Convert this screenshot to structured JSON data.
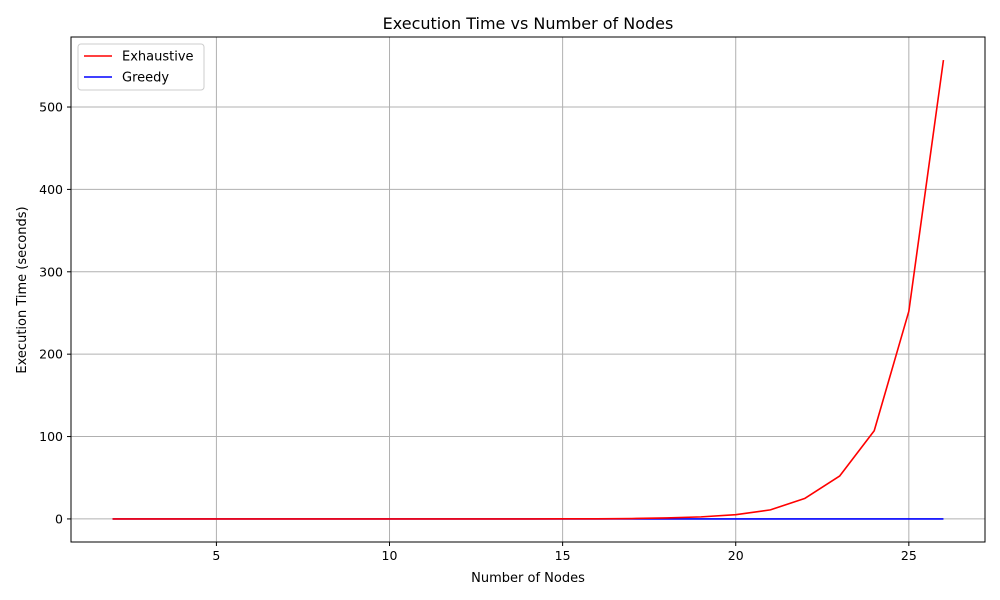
{
  "chart_data": {
    "type": "line",
    "title": "Execution Time vs Number of Nodes",
    "xlabel": "Number of Nodes",
    "ylabel": "Execution Time (seconds)",
    "xlim": [
      0.8,
      27.2
    ],
    "ylim": [
      -28,
      585
    ],
    "xticks": [
      5,
      10,
      15,
      20,
      25
    ],
    "yticks": [
      0,
      100,
      200,
      300,
      400,
      500
    ],
    "grid": true,
    "legend_position": "top-left",
    "series": [
      {
        "name": "Exhaustive",
        "color": "#ff0000",
        "x": [
          2,
          3,
          4,
          5,
          6,
          7,
          8,
          9,
          10,
          11,
          12,
          13,
          14,
          15,
          16,
          17,
          18,
          19,
          20,
          21,
          22,
          23,
          24,
          25,
          26
        ],
        "y": [
          0,
          0,
          0,
          0,
          0,
          0,
          0,
          0,
          0,
          0,
          0,
          0.02,
          0.05,
          0.1,
          0.2,
          0.5,
          1.2,
          2.5,
          5.2,
          11,
          25,
          52,
          107,
          252,
          557
        ]
      },
      {
        "name": "Greedy",
        "color": "#0000ff",
        "x": [
          2,
          3,
          4,
          5,
          6,
          7,
          8,
          9,
          10,
          11,
          12,
          13,
          14,
          15,
          16,
          17,
          18,
          19,
          20,
          21,
          22,
          23,
          24,
          25,
          26
        ],
        "y": [
          0,
          0,
          0,
          0,
          0,
          0,
          0,
          0,
          0,
          0,
          0,
          0,
          0,
          0,
          0,
          0,
          0,
          0,
          0,
          0,
          0,
          0,
          0,
          0,
          0
        ]
      }
    ]
  }
}
